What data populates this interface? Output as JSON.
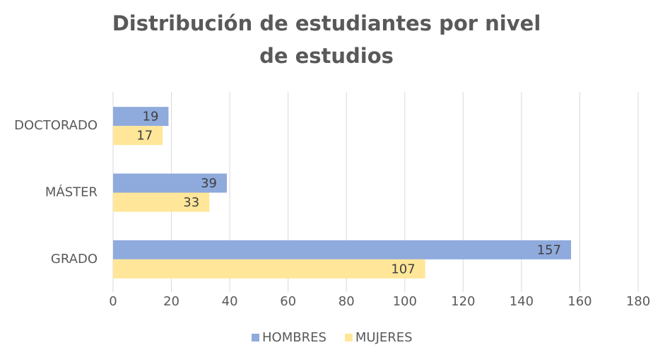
{
  "chart_data": {
    "type": "barh",
    "title": "Distribución de estudiantes por nivel de estudios",
    "categories": [
      "DOCTORADO",
      "MÁSTER",
      "GRADO"
    ],
    "series": [
      {
        "name": "HOMBRES",
        "color": "#8faadc",
        "values": [
          19,
          39,
          157
        ]
      },
      {
        "name": "MUJERES",
        "color": "#ffe699",
        "values": [
          17,
          33,
          107
        ]
      }
    ],
    "xlim": [
      0,
      180
    ],
    "xticks": [
      0,
      20,
      40,
      60,
      80,
      100,
      120,
      140,
      160,
      180
    ],
    "grid": true,
    "legend": "bottom"
  }
}
